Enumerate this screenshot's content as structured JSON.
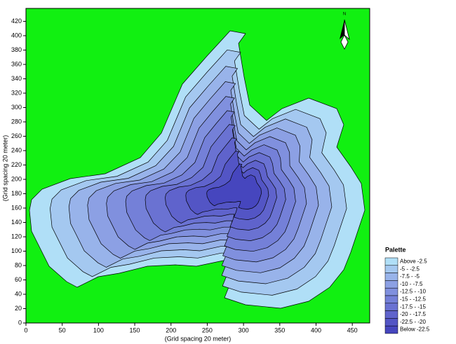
{
  "chart_data": {
    "type": "contour",
    "xlabel": "(Grid spacing 20 meter)",
    "ylabel": "(Grid spacing 20 meter)",
    "xlim": [
      0,
      474
    ],
    "ylim": [
      0,
      438
    ],
    "xticks": [
      0,
      50,
      100,
      150,
      200,
      250,
      300,
      350,
      400,
      450
    ],
    "yticks": [
      0,
      20,
      40,
      60,
      80,
      100,
      120,
      140,
      160,
      180,
      200,
      220,
      240,
      260,
      280,
      300,
      320,
      340,
      360,
      380,
      400,
      420
    ],
    "background_color": "#11f011",
    "north_label": "N",
    "palette": {
      "title": "Palette",
      "entries": [
        {
          "label": "Above  -2.5",
          "color": "#b0dff7"
        },
        {
          "label": "-5 -  -2.5",
          "color": "#a4c8f0"
        },
        {
          "label": "-7.5 -  -5",
          "color": "#98b3ea"
        },
        {
          "label": "-10 -  -7.5",
          "color": "#8ca0e4"
        },
        {
          "label": "-12.5 -  -10",
          "color": "#8090de"
        },
        {
          "label": "-15 - -12.5",
          "color": "#7480d8"
        },
        {
          "label": "-17.5 -  -15",
          "color": "#6a72d2"
        },
        {
          "label": "-20 - -17.5",
          "color": "#5f63cc"
        },
        {
          "label": "-22.5 -  -20",
          "color": "#5355c5"
        },
        {
          "label": "Below  -22.5",
          "color": "#4646be"
        }
      ]
    }
  }
}
